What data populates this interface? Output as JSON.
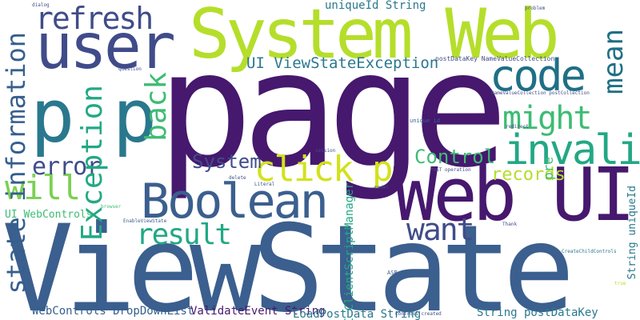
{
  "palette": {
    "dark_purple": "#46186e",
    "indigo": "#404c8a",
    "steel_blue": "#3b5f8e",
    "slate_blue": "#355f8d",
    "teal": "#2a788e",
    "deep_teal": "#1f6f86",
    "sea_green": "#22a884",
    "green": "#3dbc74",
    "light_green": "#7ad151",
    "lime": "#b5de2b",
    "yellow_green": "#d2e21b"
  },
  "words": [
    "page",
    "ViewState",
    "System Web",
    "Web UI",
    "user",
    "p p",
    "Boolean",
    "code",
    "refresh",
    "invalid id",
    "might",
    "click p",
    "will",
    "error",
    "result",
    "want",
    "Control",
    "System",
    "records",
    "state information",
    "Exception",
    "mean",
    "back",
    "pre",
    "UI ClientScriptManager",
    "String uniqueId",
    "UI ViewStateException",
    "uniqueId String",
    "UI WebControls",
    "WebControls DropDownList",
    "ValidateEvent String",
    "LoadPostData String",
    "String postDataKey",
    "postDataKey NameValueCollection",
    "NameValueCollection postCollection",
    "POST operation",
    "ASP NET",
    "unique id",
    "problem",
    "question",
    "Controls created",
    "CreateChildControls",
    "EnableViewState",
    "redirect",
    "delete",
    "model",
    "browser",
    "Literal",
    "session",
    "dialog",
    "true",
    "Thank"
  ]
}
